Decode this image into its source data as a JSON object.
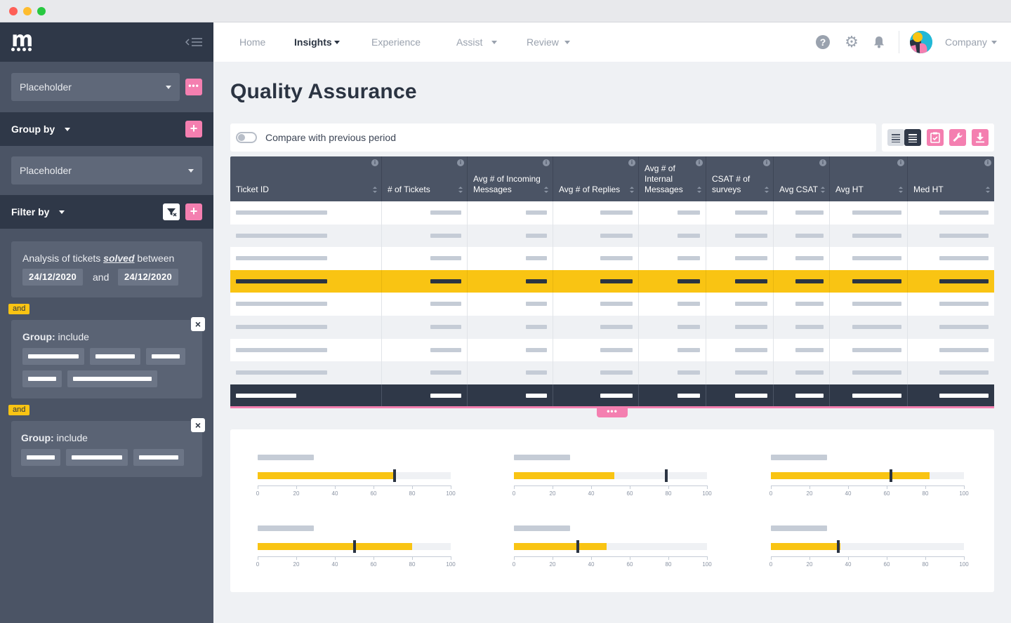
{
  "sidebar": {
    "filter_select": "Placeholder",
    "group_by": {
      "label": "Group by",
      "select": "Placeholder"
    },
    "filter_by": {
      "label": "Filter by"
    },
    "analysis": {
      "prefix": "Analysis of tickets",
      "keyword": "solved",
      "suffix": "between",
      "date_from": "24/12/2020",
      "conj": "and",
      "date_to": "24/12/2020"
    },
    "and_badge_1": "and",
    "and_badge_2": "and",
    "group1": {
      "label": "Group:",
      "value": "include"
    },
    "group2": {
      "label": "Group:",
      "value": "include"
    }
  },
  "nav": {
    "items": [
      "Home",
      "Insights",
      "Experience",
      "Assist",
      "Review"
    ],
    "company": "Company"
  },
  "page": {
    "title": "Quality Assurance",
    "compare_label": "Compare with previous period"
  },
  "table": {
    "columns": [
      "Ticket ID",
      "# of Tickets",
      "Avg # of Incoming Messages",
      "Avg # of Replies",
      "Avg # of Internal Messages",
      "CSAT # of surveys",
      "Avg CSAT",
      "Avg HT",
      "Med HT"
    ],
    "highlighted_row": 4
  },
  "gauges": [
    {
      "fill": 70,
      "marker": 71
    },
    {
      "fill": 52,
      "marker": 79
    },
    {
      "fill": 82,
      "marker": 62
    },
    {
      "fill": 80,
      "marker": 50
    },
    {
      "fill": 48,
      "marker": 33
    },
    {
      "fill": 36,
      "marker": 35
    }
  ],
  "gauge_ticks": [
    "0",
    "20",
    "40",
    "60",
    "80",
    "100"
  ]
}
